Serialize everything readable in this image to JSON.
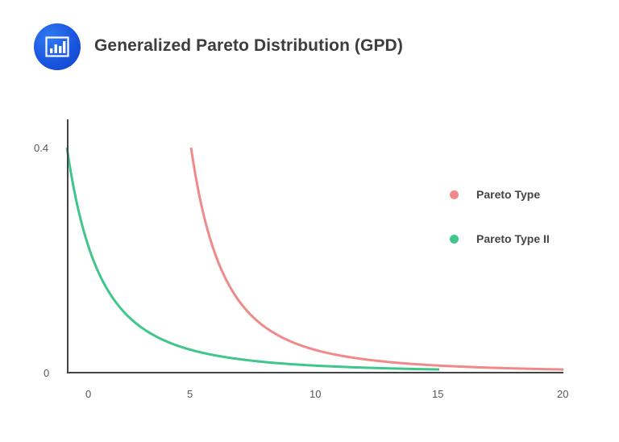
{
  "header": {
    "icon": "bar-chart-icon",
    "title": "Generalized Pareto Distribution (GPD)"
  },
  "colors": {
    "pareto_type": "#f08a8a",
    "pareto_type_ii": "#3fc68a",
    "axis": "#444444",
    "icon_bg": "#1a56e0",
    "title_text": "#3d3d3d"
  },
  "axes": {
    "y_ticks": [
      {
        "label": "0.4",
        "value": 0.4
      },
      {
        "label": "0",
        "value": 0
      }
    ],
    "x_ticks": [
      {
        "label": "0",
        "value": 0
      },
      {
        "label": "5",
        "value": 5
      },
      {
        "label": "10",
        "value": 10
      },
      {
        "label": "15",
        "value": 15
      },
      {
        "label": "20",
        "value": 20
      }
    ]
  },
  "legend": {
    "items": [
      {
        "label": "Pareto Type",
        "color": "#f08a8a"
      },
      {
        "label": "Pareto Type II",
        "color": "#3fc68a"
      }
    ]
  },
  "chart_data": {
    "type": "line",
    "title": "Generalized Pareto Distribution (GPD)",
    "xlabel": "",
    "ylabel": "",
    "xlim": [
      0,
      20
    ],
    "ylim": [
      0,
      0.4
    ],
    "grid": false,
    "legend_position": "right",
    "x_tick_labels": [
      "0",
      "5",
      "10",
      "15",
      "20"
    ],
    "y_tick_labels": [
      "0",
      "0.4"
    ],
    "series": [
      {
        "name": "Pareto Type",
        "color": "#f08a8a",
        "x": [
          5,
          5.5,
          6,
          6.5,
          7,
          7.5,
          8,
          9,
          10,
          11,
          12,
          13,
          14,
          15,
          16,
          17,
          18,
          19,
          20
        ],
        "y": [
          0.4,
          0.284,
          0.208,
          0.156,
          0.119,
          0.093,
          0.074,
          0.048,
          0.04,
          0.028,
          0.021,
          0.016,
          0.012,
          0.01,
          0.008,
          0.007,
          0.006,
          0.005,
          0.004
        ]
      },
      {
        "name": "Pareto Type II",
        "color": "#3fc68a",
        "x": [
          0,
          0.5,
          1,
          1.5,
          2,
          2.5,
          3,
          4,
          5,
          6,
          7,
          8,
          9,
          10,
          11,
          12,
          13,
          14,
          15
        ],
        "y": [
          0.4,
          0.284,
          0.208,
          0.156,
          0.119,
          0.093,
          0.074,
          0.048,
          0.04,
          0.028,
          0.021,
          0.016,
          0.012,
          0.01,
          0.008,
          0.007,
          0.006,
          0.005,
          0.004
        ]
      }
    ]
  }
}
